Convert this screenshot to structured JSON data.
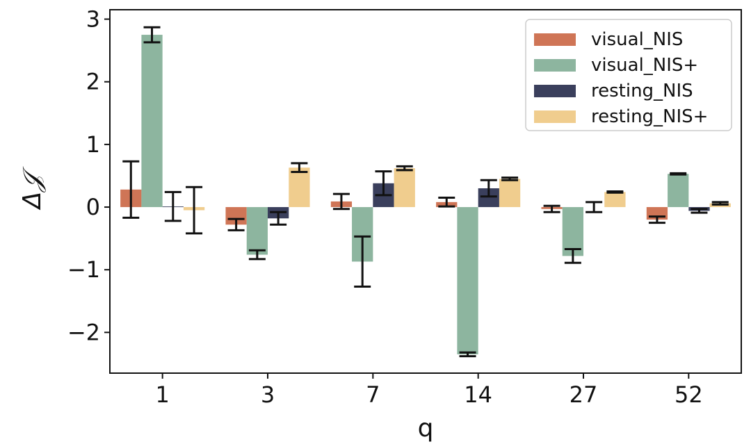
{
  "chart_data": {
    "type": "bar",
    "xlabel": "q",
    "ylabel": "Δ𝒥",
    "categories": [
      "1",
      "3",
      "7",
      "14",
      "27",
      "52"
    ],
    "ylim": [
      -2.65,
      3.15
    ],
    "yticks": [
      -2,
      -1,
      0,
      1,
      2,
      3
    ],
    "ytick_labels": [
      "−2",
      "−1",
      "0",
      "1",
      "2",
      "3"
    ],
    "legend_position": "top-right",
    "grid": false,
    "series": [
      {
        "name": "visual_NIS",
        "color": "#cf7556",
        "values": [
          0.28,
          -0.28,
          0.09,
          0.08,
          -0.03,
          -0.2
        ],
        "errors": [
          0.45,
          0.09,
          0.12,
          0.07,
          0.05,
          0.05
        ]
      },
      {
        "name": "visual_NIS+",
        "color": "#8db59f",
        "values": [
          2.75,
          -0.76,
          -0.87,
          -2.35,
          -0.78,
          0.53
        ],
        "errors": [
          0.12,
          0.07,
          0.4,
          0.03,
          0.11,
          0.01
        ]
      },
      {
        "name": "resting_NIS",
        "color": "#3a3f5c",
        "values": [
          0.01,
          -0.18,
          0.38,
          0.3,
          0.0,
          -0.06
        ],
        "errors": [
          0.23,
          0.1,
          0.19,
          0.13,
          0.08,
          0.03
        ]
      },
      {
        "name": "resting_NIS+",
        "color": "#f0cd8e",
        "values": [
          -0.05,
          0.63,
          0.62,
          0.45,
          0.24,
          0.06
        ],
        "errors": [
          0.37,
          0.07,
          0.03,
          0.02,
          0.01,
          0.02
        ]
      }
    ]
  }
}
